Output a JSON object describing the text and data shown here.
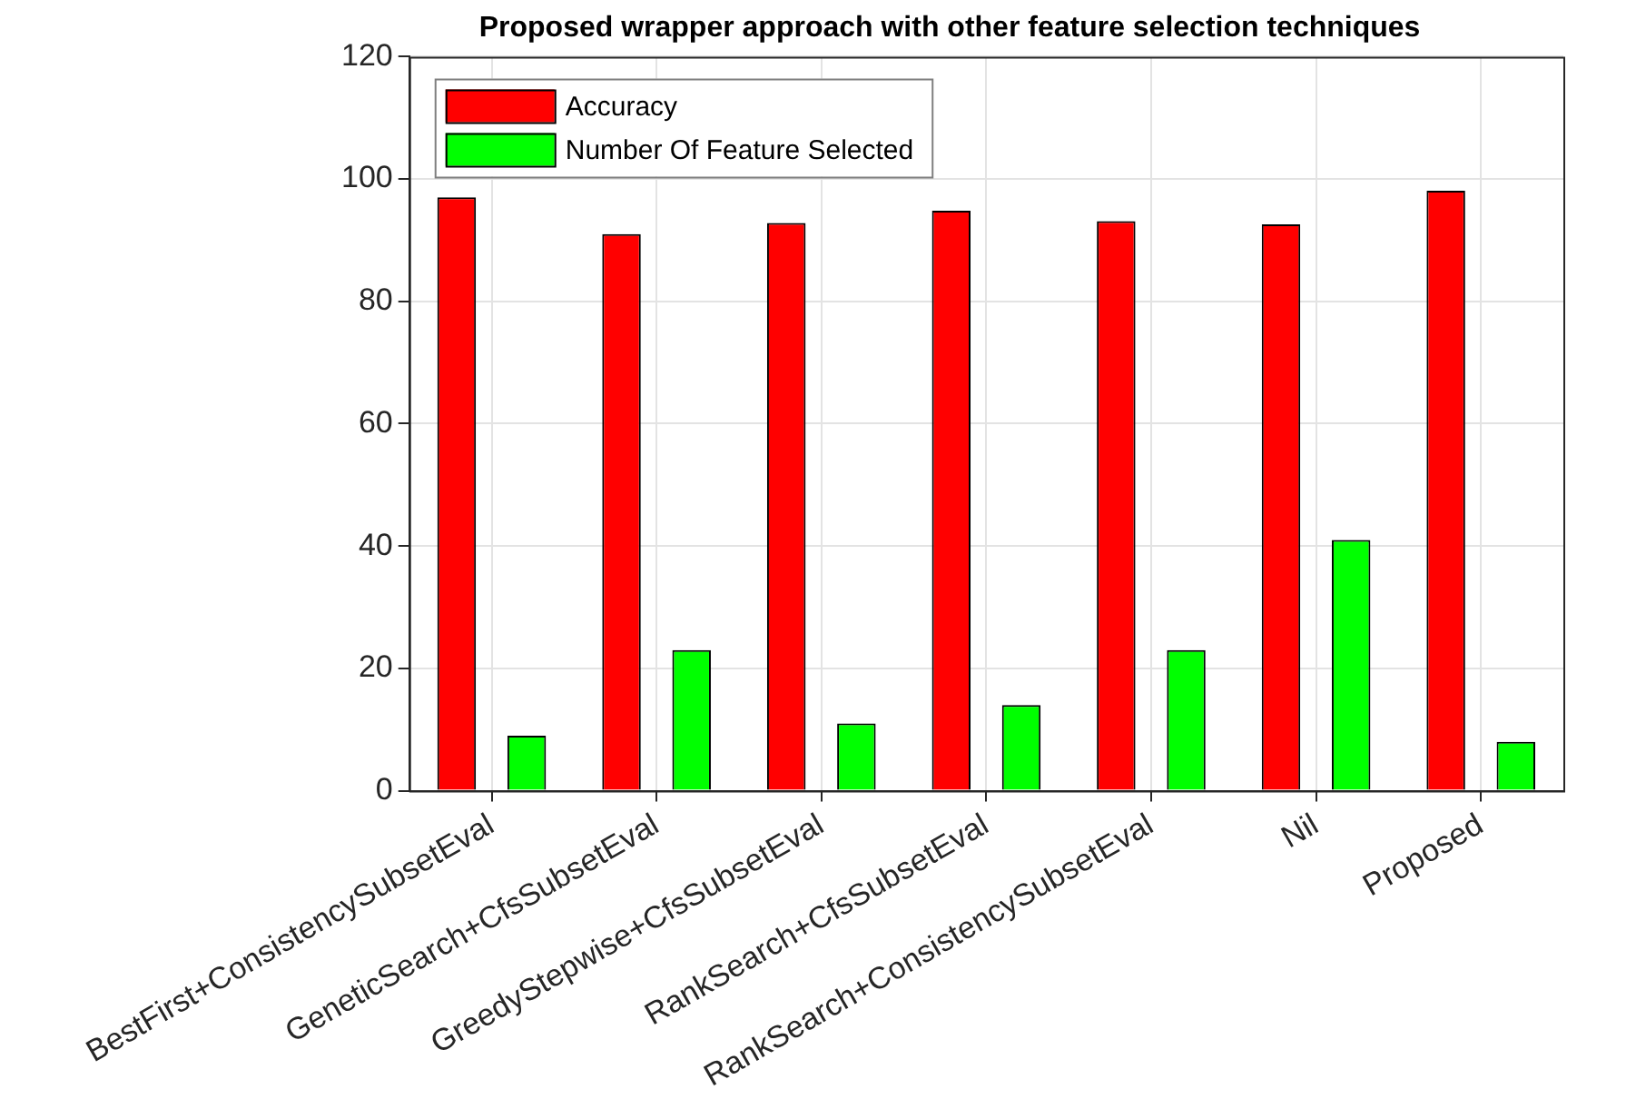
{
  "chart_data": {
    "type": "bar",
    "title": "Proposed wrapper approach with other feature selection techniques",
    "categories": [
      "BestFirst+ConsistencySubsetEval",
      "GeneticSearch+CfsSubsetEval",
      "GreedyStepwise+CfsSubsetEval",
      "RankSearch+CfsSubsetEval",
      "RankSearch+ConsistencySubsetEval",
      "Nil",
      "Proposed"
    ],
    "series": [
      {
        "name": "Accuracy",
        "color": "#ff0000",
        "values": [
          97,
          91,
          92.8,
          94.8,
          93.1,
          92.6,
          98.1
        ]
      },
      {
        "name": "Number Of Feature Selected",
        "color": "#00ff00",
        "values": [
          9,
          23,
          11,
          14,
          23,
          41,
          8
        ]
      }
    ],
    "ylim": [
      0,
      120
    ],
    "yticks": [
      0,
      20,
      40,
      60,
      80,
      100,
      120
    ],
    "grid": true,
    "legend": "top left"
  }
}
